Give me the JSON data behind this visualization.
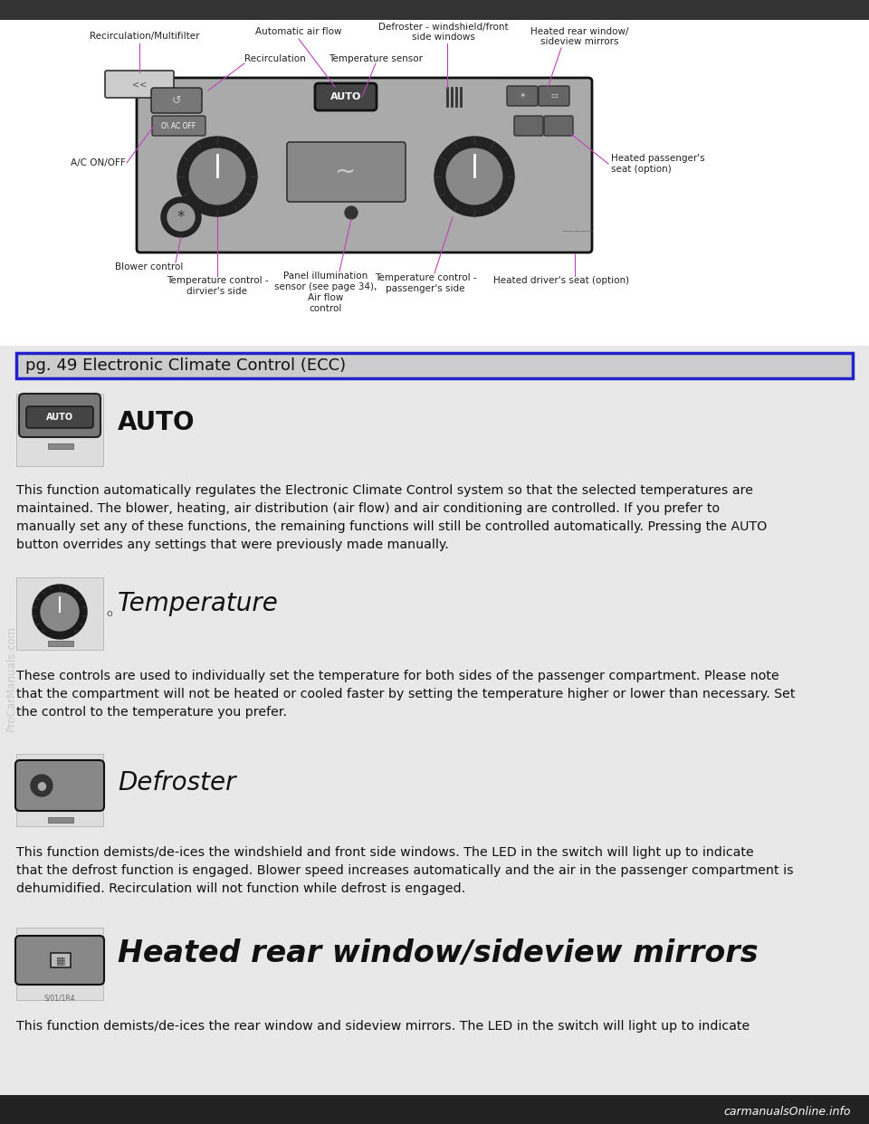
{
  "page_bg": "#ffffff",
  "outer_bg": "#e8e8e8",
  "header_bar_color": "#cccccc",
  "header_border_color": "#2222cc",
  "header_text": "pg. 49 Electronic Climate Control (ECC)",
  "header_fontsize": 13,
  "section_title_fontsize_auto": 20,
  "section_title_fontsize_temp": 20,
  "section_title_fontsize_def": 20,
  "section_title_fontsize_heat": 24,
  "body_fontsize": 10.2,
  "label_fontsize": 7.5,
  "label_color": "#bb44bb",
  "watermark_text": "ProCarManuals.com",
  "watermark_color": "#aaaaaa",
  "footer_text": "carmanualsOnline.info",
  "footer_bg": "#222222",
  "footer_color": "#ffffff",
  "auto_body": "This function automatically regulates the Electronic Climate Control system so that the selected temperatures are\nmaintained. The blower, heating, air distribution (air flow) and air conditioning are controlled. If you prefer to\nmanually set any of these functions, the remaining functions will still be controlled automatically. Pressing the AUTO\nbutton overrides any settings that were previously made manually.",
  "temp_body": "These controls are used to individually set the temperature for both sides of the passenger compartment. Please note\nthat the compartment will not be heated or cooled faster by setting the temperature higher or lower than necessary. Set\nthe control to the temperature you prefer.",
  "def_body": "This function demists/de-ices the windshield and front side windows. The LED in the switch will light up to indicate\nthat the defrost function is engaged. Blower speed increases automatically and the air in the passenger compartment is\ndehumidified. Recirculation will not function while defrost is engaged.",
  "heat_body": "This function demists/de-ices the rear window and sideview mirrors. The LED in the switch will light up to indicate"
}
